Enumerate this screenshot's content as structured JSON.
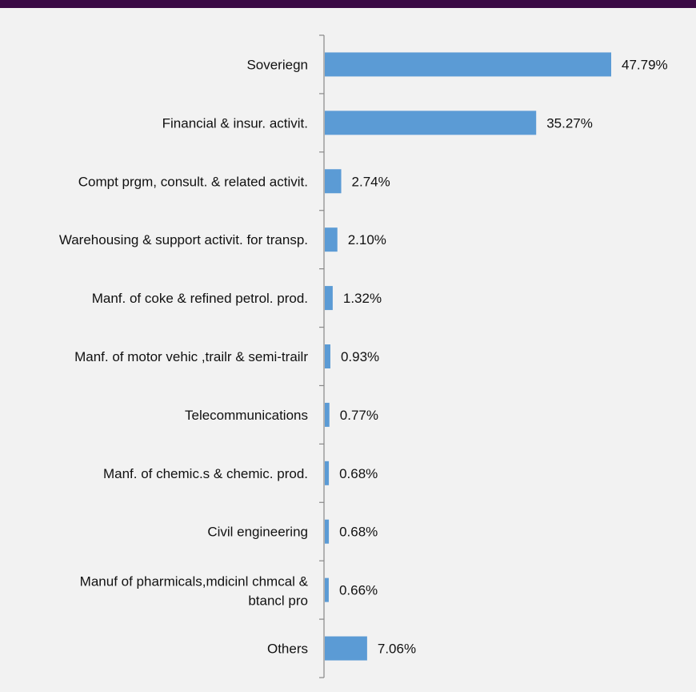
{
  "colors": {
    "header": "#3b0a45",
    "panel": "#f2f2f2",
    "bar": "#5b9bd5",
    "axis": "#888888"
  },
  "chart_data": {
    "type": "bar",
    "orientation": "horizontal",
    "categories": [
      "Soveriegn",
      "Financial & insur. activit.",
      "Compt prgm, consult. & related activit.",
      "Warehousing & support activit. for transp.",
      "Manf. of coke & refined petrol. prod.",
      "Manf. of motor vehic ,trailr & semi-trailr",
      "Telecommunications",
      "Manf. of chemic.s & chemic. prod.",
      "Civil engineering",
      "Manuf of pharmicals,mdicinl chmcal & btancl pro",
      "Others"
    ],
    "values": [
      47.79,
      35.27,
      2.74,
      2.1,
      1.32,
      0.93,
      0.77,
      0.68,
      0.68,
      0.66,
      7.06
    ],
    "data_labels": [
      "47.79%",
      "35.27%",
      "2.74%",
      "2.10%",
      "1.32%",
      "0.93%",
      "0.77%",
      "0.68%",
      "0.68%",
      "0.66%",
      "7.06%"
    ],
    "xlim": [
      0,
      55
    ],
    "grid": false,
    "legend": "none"
  }
}
